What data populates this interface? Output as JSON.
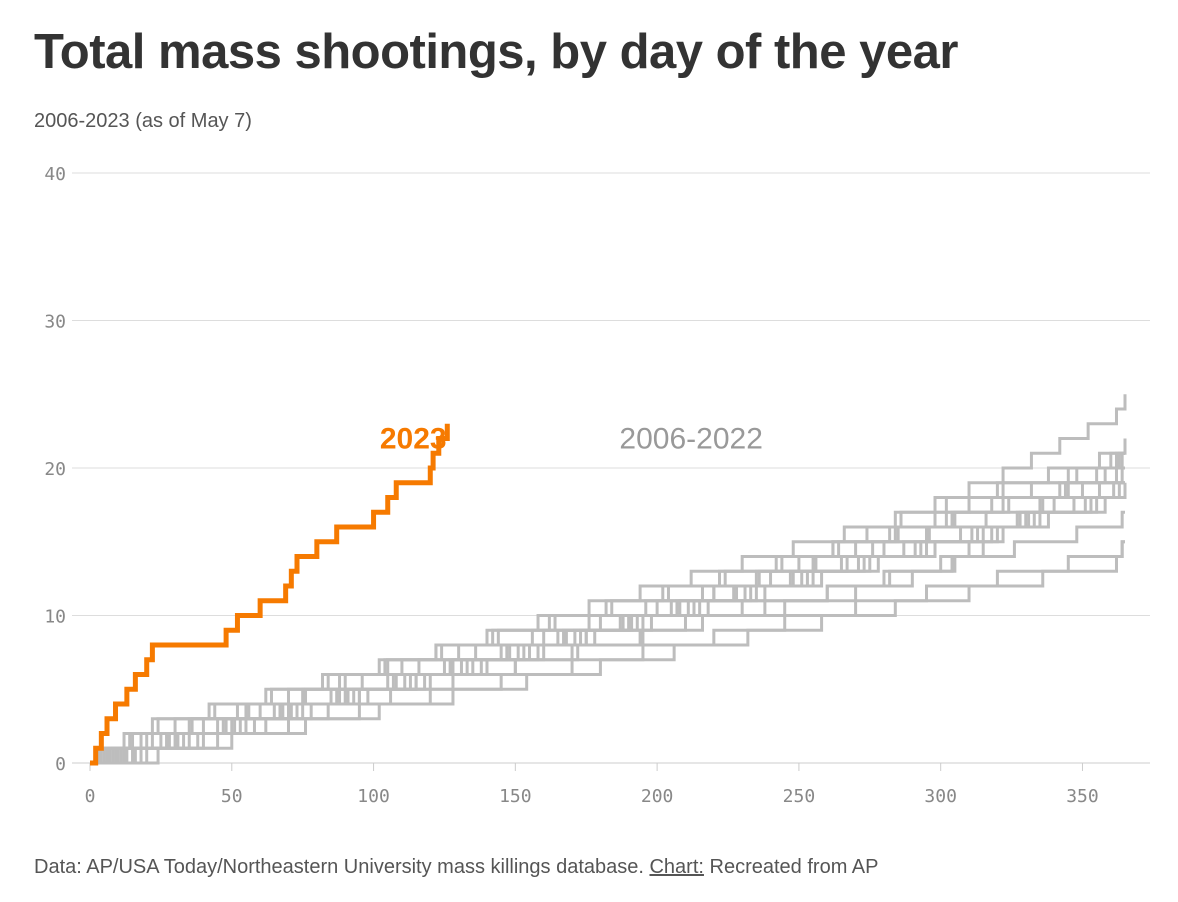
{
  "header": {
    "title": "Total mass shootings, by day of the year",
    "subtitle": "2006-2023 (as of May 7)"
  },
  "footer": {
    "source": "Data: AP/USA Today/Northeastern University mass killings database.",
    "chart_link": "Chart:",
    "chart_credit": "Recreated from AP"
  },
  "colors": {
    "highlight": "#f67a00",
    "background_series": "#bdbdbd",
    "grid": "#dddddd"
  },
  "chart_data": {
    "type": "line",
    "step": true,
    "title": "Total mass shootings, by day of the year",
    "subtitle": "2006-2023 (as of May 7)",
    "xlabel": "",
    "ylabel": "",
    "xlim": [
      0,
      365
    ],
    "ylim": [
      0,
      40
    ],
    "x_ticks": [
      0,
      50,
      100,
      150,
      200,
      250,
      300,
      350
    ],
    "y_ticks": [
      0,
      10,
      20,
      30,
      40
    ],
    "grid": "horizontal",
    "annotations": [
      {
        "text": "2023",
        "series": "highlight",
        "x": 114,
        "y": 22
      },
      {
        "text": "2006-2022",
        "series": "background",
        "x": 212,
        "y": 22
      }
    ],
    "highlight_series": {
      "name": "2023",
      "events": [
        2,
        4,
        6,
        9,
        13,
        16,
        20,
        22,
        48,
        52,
        60,
        69,
        71,
        73,
        80,
        87,
        100,
        105,
        108,
        120,
        121,
        123,
        126
      ]
    },
    "background_series": [
      {
        "events": [
          3,
          15,
          30,
          55,
          75,
          90,
          110,
          130,
          160,
          190,
          230,
          260,
          280,
          300,
          310,
          320,
          328,
          335,
          345,
          355,
          360
        ]
      },
      {
        "events": [
          8,
          20,
          40,
          60,
          90,
          120,
          150,
          170,
          195,
          210,
          245,
          270,
          290,
          305,
          315,
          322,
          330,
          340,
          350,
          358,
          364
        ]
      },
      {
        "events": [
          5,
          25,
          45,
          65,
          85,
          105,
          125,
          145,
          165,
          180,
          200,
          220,
          240,
          255,
          270,
          285,
          298,
          310,
          322,
          345,
          363
        ]
      },
      {
        "events": [
          10,
          30,
          50,
          70,
          95,
          115,
          140,
          160,
          175,
          190,
          205,
          220,
          235,
          250,
          262,
          274,
          286,
          298,
          310,
          322,
          332,
          342,
          352,
          362,
          365
        ]
      },
      {
        "events": [
          12,
          28,
          48,
          68,
          88,
          108,
          128,
          148,
          168,
          188,
          208,
          228,
          248,
          265,
          280,
          295,
          305,
          318,
          332,
          348,
          362
        ]
      },
      {
        "events": [
          6,
          18,
          35,
          52,
          70,
          88,
          105,
          122,
          140,
          158,
          176,
          194,
          212,
          230,
          248,
          266,
          284,
          302,
          320,
          338,
          356,
          365
        ]
      },
      {
        "events": [
          4,
          14,
          24,
          44,
          64,
          84,
          104,
          124,
          144,
          164,
          184,
          204,
          224,
          244,
          264,
          284,
          304,
          324,
          344,
          364
        ]
      },
      {
        "events": [
          9,
          22,
          36,
          56,
          76,
          96,
          116,
          136,
          156,
          176,
          196,
          216,
          236,
          256,
          276,
          296,
          316,
          336,
          356
        ]
      },
      {
        "events": [
          15,
          35,
          55,
          75,
          95,
          115,
          135,
          155,
          175,
          195,
          215,
          235,
          255,
          275,
          295,
          315,
          335,
          355,
          365
        ]
      },
      {
        "events": [
          7,
          27,
          47,
          67,
          87,
          107,
          127,
          147,
          167,
          187,
          207,
          227,
          247,
          267,
          287,
          307,
          327,
          347
        ]
      },
      {
        "events": [
          11,
          31,
          51,
          71,
          91,
          111,
          131,
          151,
          171,
          191,
          211,
          231,
          251,
          271,
          291,
          311,
          331,
          351,
          361
        ]
      },
      {
        "events": [
          2,
          12,
          22,
          42,
          62,
          82,
          102,
          122,
          142,
          162,
          182,
          202,
          222,
          242,
          262,
          282,
          302,
          322,
          342,
          362
        ]
      },
      {
        "events": [
          13,
          33,
          53,
          73,
          93,
          113,
          133,
          153,
          173,
          193,
          213,
          233,
          253,
          273,
          293,
          313,
          333,
          353,
          363
        ]
      },
      {
        "events": [
          16,
          38,
          58,
          78,
          98,
          118,
          138,
          158,
          178,
          198,
          218,
          238,
          258,
          278,
          298,
          318,
          338,
          358
        ]
      },
      {
        "events": [
          18,
          40,
          62,
          84,
          106,
          128,
          150,
          172,
          194,
          216,
          238,
          260,
          282,
          304,
          326,
          348,
          364
        ]
      },
      {
        "events": [
          20,
          45,
          70,
          95,
          120,
          145,
          170,
          195,
          220,
          245,
          270,
          295,
          320,
          345,
          364
        ]
      },
      {
        "events": [
          24,
          50,
          76,
          102,
          128,
          154,
          180,
          206,
          232,
          258,
          284,
          310,
          336,
          362,
          364
        ]
      }
    ]
  }
}
